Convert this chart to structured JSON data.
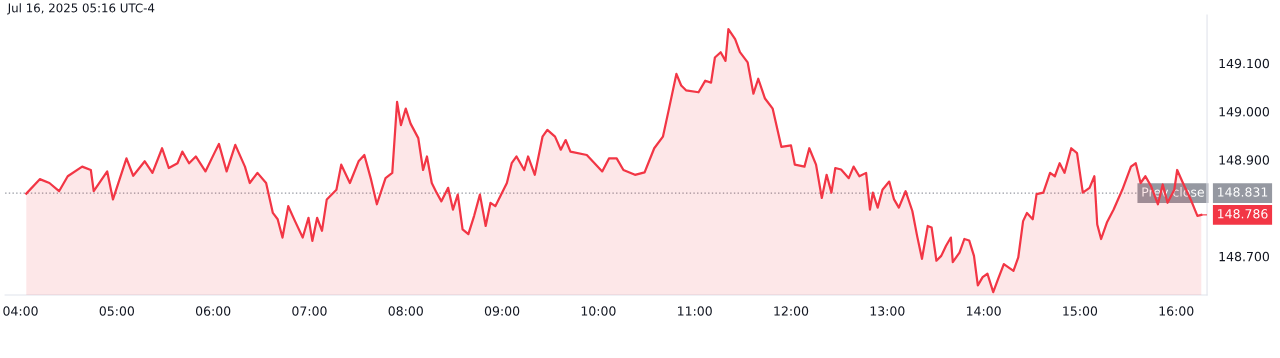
{
  "chart_data": {
    "type": "area",
    "annotations": [
      "Jul 16, 2025 05:16 UTC-4",
      {
        "text": "148.786",
        "x": 16.26,
        "y": 148.786
      },
      "148.831"
    ],
    "series": [
      {
        "color": "#f23645",
        "x": [
          4.06,
          4.2,
          4.3,
          4.4,
          4.49,
          4.64,
          4.73,
          4.76,
          4.9,
          4.96,
          5.1,
          5.17,
          5.29,
          5.37,
          5.47,
          5.54,
          5.63,
          5.68,
          5.75,
          5.82,
          5.92,
          6.02,
          6.06,
          6.14,
          6.23,
          6.33,
          6.38,
          6.46,
          6.55,
          6.62,
          6.67,
          6.72,
          6.78,
          6.85,
          6.93,
          6.99,
          7.03,
          7.08,
          7.13,
          7.18,
          7.28,
          7.33,
          7.42,
          7.51,
          7.57,
          7.64,
          7.7,
          7.74,
          7.79,
          7.86,
          7.91,
          7.95,
          8.0,
          8.05,
          8.13,
          8.18,
          8.22,
          8.27,
          8.32,
          8.37,
          8.44,
          8.49,
          8.54,
          8.59,
          8.65,
          8.71,
          8.77,
          8.83,
          8.88,
          8.93,
          9.05,
          9.1,
          9.15,
          9.23,
          9.27,
          9.34,
          9.42,
          9.47,
          9.55,
          9.61,
          9.66,
          9.71,
          9.88,
          10.04,
          10.11,
          10.19,
          10.26,
          10.38,
          10.48,
          10.58,
          10.67,
          10.73,
          10.81,
          10.86,
          10.91,
          11.04,
          11.11,
          11.17,
          11.21,
          11.27,
          11.32,
          11.35,
          11.42,
          11.47,
          11.55,
          11.61,
          11.66,
          11.73,
          11.81,
          11.9,
          12.0,
          12.04,
          12.14,
          12.19,
          12.26,
          12.32,
          12.37,
          12.42,
          12.46,
          12.52,
          12.6,
          12.65,
          12.71,
          12.78,
          12.82,
          12.85,
          12.9,
          12.95,
          13.02,
          13.07,
          13.12,
          13.19,
          13.26,
          13.31,
          13.36,
          13.42,
          13.46,
          13.51,
          13.56,
          13.61,
          13.66,
          13.68,
          13.75,
          13.8,
          13.85,
          13.9,
          13.94,
          13.99,
          14.04,
          14.1,
          14.15,
          14.21,
          14.31,
          14.36,
          14.41,
          14.45,
          14.51,
          14.55,
          14.62,
          14.69,
          14.74,
          14.79,
          14.84,
          14.91,
          14.97,
          15.03,
          15.1,
          15.15,
          15.18,
          15.22,
          15.28,
          15.35,
          15.44,
          15.53,
          15.58,
          15.63,
          15.68,
          15.74,
          15.81,
          15.86,
          15.91,
          15.98,
          16.01,
          16.07,
          16.15,
          16.22,
          16.26
        ],
        "values": [
          148.83,
          148.86,
          148.852,
          148.835,
          148.866,
          148.886,
          148.879,
          148.835,
          148.876,
          148.818,
          148.903,
          148.867,
          148.897,
          148.873,
          148.924,
          148.883,
          148.893,
          148.917,
          148.893,
          148.907,
          148.876,
          148.917,
          148.933,
          148.876,
          148.931,
          148.886,
          148.852,
          148.873,
          148.852,
          148.79,
          148.777,
          148.739,
          148.804,
          148.773,
          148.739,
          148.78,
          148.732,
          148.78,
          148.753,
          148.818,
          148.838,
          148.89,
          148.852,
          148.897,
          148.91,
          148.859,
          148.808,
          148.832,
          148.862,
          148.873,
          149.02,
          148.972,
          149.006,
          148.975,
          148.945,
          148.879,
          148.907,
          148.852,
          148.832,
          148.814,
          148.842,
          148.797,
          148.828,
          148.756,
          148.746,
          148.784,
          148.828,
          148.763,
          148.811,
          148.804,
          148.852,
          148.893,
          148.907,
          148.879,
          148.907,
          148.869,
          148.948,
          148.962,
          148.948,
          148.921,
          148.941,
          148.917,
          148.91,
          148.876,
          148.903,
          148.903,
          148.879,
          148.869,
          148.874,
          148.924,
          148.948,
          149.003,
          149.078,
          149.054,
          149.044,
          149.04,
          149.064,
          149.06,
          149.112,
          149.123,
          149.105,
          149.171,
          149.15,
          149.123,
          149.102,
          149.037,
          149.068,
          149.027,
          149.006,
          148.927,
          148.93,
          148.89,
          148.886,
          148.924,
          148.89,
          148.821,
          148.869,
          148.832,
          148.883,
          148.88,
          148.862,
          148.886,
          148.866,
          148.873,
          148.797,
          148.832,
          148.801,
          148.838,
          148.855,
          148.818,
          148.801,
          148.835,
          148.794,
          148.742,
          148.695,
          148.763,
          148.76,
          148.691,
          148.701,
          148.722,
          148.739,
          148.688,
          148.708,
          148.736,
          148.733,
          148.701,
          148.64,
          148.657,
          148.664,
          148.626,
          148.653,
          148.684,
          148.67,
          148.698,
          148.773,
          148.79,
          148.777,
          148.829,
          148.832,
          148.873,
          148.866,
          148.893,
          148.873,
          148.924,
          148.914,
          148.832,
          148.842,
          148.866,
          148.766,
          148.736,
          148.77,
          148.797,
          148.838,
          148.886,
          148.893,
          148.852,
          148.866,
          148.845,
          148.808,
          148.849,
          148.811,
          148.838,
          148.879,
          148.852,
          148.818,
          148.784,
          148.786
        ]
      }
    ],
    "xlim": [
      3.84,
      16.32
    ],
    "xticks": [
      {
        "value": 4,
        "label": "04:00"
      },
      {
        "value": 5,
        "label": "05:00"
      },
      {
        "value": 6,
        "label": "06:00"
      },
      {
        "value": 7,
        "label": "07:00"
      },
      {
        "value": 8,
        "label": "08:00"
      },
      {
        "value": 9,
        "label": "09:00"
      },
      {
        "value": 10,
        "label": "10:00"
      },
      {
        "value": 11,
        "label": "11:00"
      },
      {
        "value": 12,
        "label": "12:00"
      },
      {
        "value": 13,
        "label": "13:00"
      },
      {
        "value": 14,
        "label": "14:00"
      },
      {
        "value": 15,
        "label": "15:00"
      },
      {
        "value": 16,
        "label": "16:00"
      }
    ],
    "ylim": [
      148.62,
      149.2
    ],
    "yticks": [
      {
        "value": 148.7,
        "label": "148.700"
      },
      {
        "value": 148.9,
        "label": "148.900"
      },
      {
        "value": 149.0,
        "label": "149.000"
      },
      {
        "value": 149.1,
        "label": "149.100"
      }
    ],
    "ref_lines": [
      {
        "axis": "y",
        "value": 148.831,
        "label": "Prev close",
        "color": "#9598a1",
        "line_style": "dotted"
      }
    ],
    "grid": false,
    "legend": false
  }
}
